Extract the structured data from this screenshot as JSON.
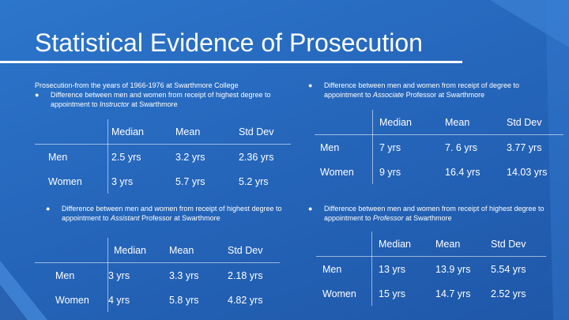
{
  "title": "Statistical Evidence of Prosecution",
  "left_intro": "Prosecution-from the years of 1966-1976 at Swarthmore College",
  "bullet_char": "●",
  "notes": {
    "instructor": {
      "pre": "Difference between men and women from receipt of highest degree to appointment to ",
      "role": "Instructor",
      "post": "  at Swarthmore"
    },
    "assistant": {
      "pre": "Difference between men and women from receipt of highest degree to appointment to ",
      "role": "Assistant",
      "post": " Professor at Swarthmore"
    },
    "associate": {
      "pre": "Difference between men and women from receipt of degree to appointment to ",
      "role": "Associate",
      "post": " Professor at Swarthmore"
    },
    "professor": {
      "pre": "Difference between men and women from receipt of highest degree to appointment to ",
      "role": "Professor",
      "post": " at Swarthmore"
    }
  },
  "tables": {
    "instructor": {
      "headers": [
        "Median",
        "Mean",
        "Std Dev"
      ],
      "rows": [
        {
          "label": "Men",
          "values": [
            "2.5 yrs",
            "3.2 yrs",
            "2.36 yrs"
          ]
        },
        {
          "label": "Women",
          "values": [
            "3 yrs",
            "5.7 yrs",
            "5.2 yrs"
          ]
        }
      ]
    },
    "assistant": {
      "headers": [
        "Median",
        "Mean",
        "Std Dev"
      ],
      "rows": [
        {
          "label": "Men",
          "values": [
            "3 yrs",
            "3.3 yrs",
            "2.18 yrs"
          ]
        },
        {
          "label": "Women",
          "values": [
            "4 yrs",
            "5.8  yrs",
            "4.82 yrs"
          ]
        }
      ]
    },
    "associate": {
      "headers": [
        "Median",
        "Mean",
        "Std Dev"
      ],
      "rows": [
        {
          "label": "Men",
          "values": [
            "7 yrs",
            "7. 6 yrs",
            "3.77 yrs"
          ]
        },
        {
          "label": "Women",
          "values": [
            "9 yrs",
            "16.4 yrs",
            "14.03 yrs"
          ]
        }
      ]
    },
    "professor": {
      "headers": [
        "Median",
        "Mean",
        "Std Dev"
      ],
      "rows": [
        {
          "label": "Men",
          "values": [
            "13 yrs",
            "13.9 yrs",
            "5.54 yrs"
          ]
        },
        {
          "label": "Women",
          "values": [
            "15 yrs",
            "14.7 yrs",
            "2.52 yrs"
          ]
        }
      ]
    }
  }
}
